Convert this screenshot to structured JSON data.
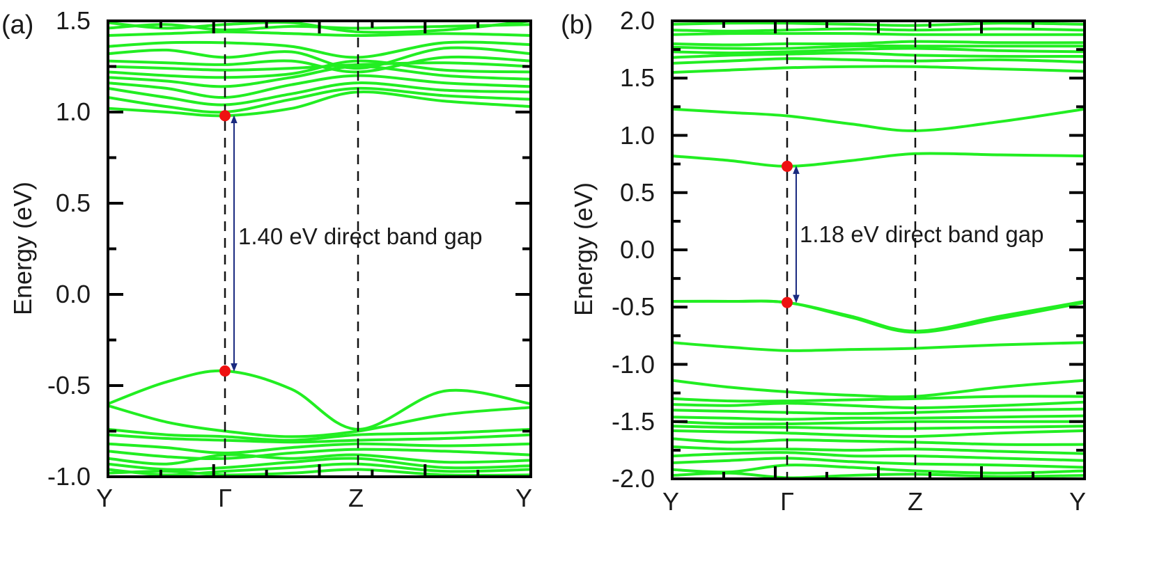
{
  "chart_data": [
    {
      "type": "line",
      "panel_label": "(a)",
      "ylabel": "Energy (eV)",
      "xlabel": "",
      "ylim": [
        -1.0,
        1.5
      ],
      "ytick_labels": [
        "1.5",
        "1.0",
        "0.5",
        "0.0",
        "-0.5",
        "-1.0"
      ],
      "ytick_values": [
        1.5,
        1.0,
        0.5,
        0.0,
        -0.5,
        -1.0
      ],
      "k_labels": [
        "Y",
        "Γ",
        "Z",
        "Y"
      ],
      "k_positions": [
        0,
        1,
        2,
        3.2
      ],
      "gap_annotation": "1.40 eV direct band gap",
      "vbm": {
        "k": 1,
        "energy": -0.42
      },
      "cbm": {
        "k": 1,
        "energy": 0.98
      },
      "line_color": "#22ee22",
      "marker_color": "#ee1111",
      "arrow_color": "#1a2a80",
      "series": [
        {
          "name": "cb1",
          "x": [
            0,
            0.5,
            1,
            1.5,
            2,
            2.6,
            3.2
          ],
          "values": [
            1.02,
            1.0,
            0.98,
            1.02,
            1.11,
            1.06,
            1.03
          ]
        },
        {
          "name": "cb2",
          "x": [
            0,
            0.5,
            1,
            1.5,
            2,
            2.6,
            3.2
          ],
          "values": [
            1.08,
            1.03,
            1.0,
            1.07,
            1.13,
            1.09,
            1.07
          ]
        },
        {
          "name": "cb3",
          "x": [
            0,
            0.5,
            1,
            1.5,
            2,
            2.6,
            3.2
          ],
          "values": [
            1.13,
            1.08,
            1.04,
            1.1,
            1.16,
            1.12,
            1.11
          ]
        },
        {
          "name": "cb4",
          "x": [
            0,
            0.5,
            1,
            1.5,
            2,
            2.6,
            3.2
          ],
          "values": [
            1.16,
            1.13,
            1.08,
            1.15,
            1.2,
            1.16,
            1.14
          ]
        },
        {
          "name": "cb5",
          "x": [
            0,
            0.5,
            1,
            1.5,
            2,
            2.6,
            3.2
          ],
          "values": [
            1.19,
            1.17,
            1.14,
            1.19,
            1.25,
            1.2,
            1.18
          ]
        },
        {
          "name": "cb6",
          "x": [
            0,
            0.5,
            1,
            1.5,
            2,
            2.6,
            3.2
          ],
          "values": [
            1.22,
            1.2,
            1.19,
            1.21,
            1.28,
            1.23,
            1.22
          ]
        },
        {
          "name": "cb7",
          "x": [
            0,
            0.5,
            1,
            1.5,
            2,
            2.6,
            3.2
          ],
          "values": [
            1.25,
            1.24,
            1.23,
            1.24,
            1.26,
            1.27,
            1.25
          ]
        },
        {
          "name": "cb8",
          "x": [
            0,
            0.5,
            1,
            1.5,
            2,
            2.6,
            3.2
          ],
          "values": [
            1.28,
            1.27,
            1.26,
            1.28,
            1.22,
            1.3,
            1.28
          ]
        },
        {
          "name": "cb9",
          "x": [
            0,
            0.5,
            1,
            1.5,
            2,
            2.6,
            3.2
          ],
          "values": [
            1.32,
            1.34,
            1.3,
            1.33,
            1.24,
            1.35,
            1.32
          ]
        },
        {
          "name": "cb10",
          "x": [
            0,
            0.5,
            1,
            1.5,
            2,
            2.6,
            3.2
          ],
          "values": [
            1.36,
            1.38,
            1.38,
            1.36,
            1.3,
            1.38,
            1.37
          ]
        },
        {
          "name": "cb11",
          "x": [
            0,
            0.5,
            1,
            1.5,
            2,
            2.6,
            3.2
          ],
          "values": [
            1.42,
            1.43,
            1.44,
            1.43,
            1.42,
            1.43,
            1.42
          ]
        },
        {
          "name": "cb12",
          "x": [
            0,
            0.5,
            1,
            1.5,
            2,
            2.6,
            3.2
          ],
          "values": [
            1.46,
            1.48,
            1.45,
            1.47,
            1.46,
            1.47,
            1.48
          ]
        },
        {
          "name": "cb13",
          "x": [
            0,
            0.5,
            1,
            1.5,
            2,
            2.6,
            3.2
          ],
          "values": [
            1.49,
            1.46,
            1.48,
            1.49,
            1.44,
            1.45,
            1.5
          ]
        },
        {
          "name": "vb1",
          "x": [
            0,
            0.5,
            1,
            1.5,
            2,
            2.6,
            3.2
          ],
          "values": [
            -0.6,
            -0.48,
            -0.42,
            -0.52,
            -0.74,
            -0.53,
            -0.6
          ]
        },
        {
          "name": "vb2",
          "x": [
            0,
            0.5,
            1,
            1.5,
            2,
            2.6,
            3.2
          ],
          "values": [
            -0.61,
            -0.7,
            -0.75,
            -0.78,
            -0.75,
            -0.66,
            -0.62
          ]
        },
        {
          "name": "vb3",
          "x": [
            0,
            0.5,
            1,
            1.5,
            2,
            2.6,
            3.2
          ],
          "values": [
            -0.74,
            -0.77,
            -0.78,
            -0.8,
            -0.77,
            -0.76,
            -0.74
          ]
        },
        {
          "name": "vb4",
          "x": [
            0,
            0.5,
            1,
            1.5,
            2,
            2.6,
            3.2
          ],
          "values": [
            -0.77,
            -0.79,
            -0.8,
            -0.81,
            -0.8,
            -0.79,
            -0.77
          ]
        },
        {
          "name": "vb5",
          "x": [
            0,
            0.5,
            1,
            1.5,
            2,
            2.6,
            3.2
          ],
          "values": [
            -0.82,
            -0.84,
            -0.87,
            -0.84,
            -0.82,
            -0.83,
            -0.82
          ]
        },
        {
          "name": "vb6",
          "x": [
            0,
            0.5,
            1,
            1.5,
            2,
            2.6,
            3.2
          ],
          "values": [
            -0.86,
            -0.89,
            -0.9,
            -0.87,
            -0.85,
            -0.86,
            -0.88
          ]
        },
        {
          "name": "vb7",
          "x": [
            0,
            0.5,
            1,
            1.5,
            2,
            2.6,
            3.2
          ],
          "values": [
            -0.9,
            -0.93,
            -0.88,
            -0.9,
            -0.88,
            -0.92,
            -0.91
          ]
        },
        {
          "name": "vb8",
          "x": [
            0,
            0.5,
            1,
            1.5,
            2,
            2.6,
            3.2
          ],
          "values": [
            -0.93,
            -0.96,
            -0.95,
            -0.92,
            -0.9,
            -0.95,
            -0.94
          ]
        },
        {
          "name": "vb9",
          "x": [
            0,
            0.5,
            1,
            1.5,
            2,
            2.6,
            3.2
          ],
          "values": [
            -0.96,
            -0.99,
            -0.97,
            -0.95,
            -0.93,
            -0.97,
            -0.96
          ]
        },
        {
          "name": "vb10",
          "x": [
            0,
            0.5,
            1,
            1.5,
            2,
            2.6,
            3.2
          ],
          "values": [
            -0.98,
            -0.97,
            -0.99,
            -0.98,
            -0.96,
            -0.99,
            -0.99
          ]
        }
      ]
    },
    {
      "type": "line",
      "panel_label": "(b)",
      "ylabel": "Energy (eV)",
      "xlabel": "",
      "ylim": [
        -2.0,
        2.0
      ],
      "ytick_labels": [
        "2.0",
        "1.5",
        "1.0",
        "0.5",
        "0.0",
        "-0.5",
        "-1.0",
        "-1.5",
        "-2.0"
      ],
      "ytick_values": [
        2.0,
        1.5,
        1.0,
        0.5,
        0.0,
        -0.5,
        -1.0,
        -1.5,
        -2.0
      ],
      "k_labels": [
        "Y",
        "Γ",
        "Z",
        "Y"
      ],
      "k_positions": [
        0,
        1,
        2,
        3.2
      ],
      "gap_annotation": "1.18 eV direct band gap",
      "vbm": {
        "k": 1,
        "energy": -0.46
      },
      "cbm": {
        "k": 1,
        "energy": 0.73
      },
      "line_color": "#22ee22",
      "marker_color": "#ee1111",
      "arrow_color": "#1a2a80",
      "series": [
        {
          "name": "cb1",
          "x": [
            0,
            0.5,
            1,
            1.5,
            2,
            2.6,
            3.2
          ],
          "values": [
            0.82,
            0.78,
            0.73,
            0.78,
            0.84,
            0.83,
            0.82
          ]
        },
        {
          "name": "cb2",
          "x": [
            0,
            0.5,
            1,
            1.5,
            2,
            2.6,
            3.2
          ],
          "values": [
            1.23,
            1.2,
            1.17,
            1.1,
            1.04,
            1.12,
            1.23
          ]
        },
        {
          "name": "cb3",
          "x": [
            0,
            0.5,
            1,
            1.5,
            2,
            2.6,
            3.2
          ],
          "values": [
            1.55,
            1.57,
            1.59,
            1.6,
            1.6,
            1.58,
            1.56
          ]
        },
        {
          "name": "cb4",
          "x": [
            0,
            0.5,
            1,
            1.5,
            2,
            2.6,
            3.2
          ],
          "values": [
            1.63,
            1.65,
            1.67,
            1.66,
            1.65,
            1.66,
            1.64
          ]
        },
        {
          "name": "cb5",
          "x": [
            0,
            0.5,
            1,
            1.5,
            2,
            2.6,
            3.2
          ],
          "values": [
            1.68,
            1.7,
            1.71,
            1.72,
            1.7,
            1.69,
            1.69
          ]
        },
        {
          "name": "cb6",
          "x": [
            0,
            0.5,
            1,
            1.5,
            2,
            2.6,
            3.2
          ],
          "values": [
            1.73,
            1.72,
            1.73,
            1.75,
            1.76,
            1.74,
            1.73
          ]
        },
        {
          "name": "cb7",
          "x": [
            0,
            0.5,
            1,
            1.5,
            2,
            2.6,
            3.2
          ],
          "values": [
            1.77,
            1.76,
            1.76,
            1.78,
            1.78,
            1.78,
            1.78
          ]
        },
        {
          "name": "cb8",
          "x": [
            0,
            0.5,
            1,
            1.5,
            2,
            2.6,
            3.2
          ],
          "values": [
            1.8,
            1.79,
            1.8,
            1.8,
            1.82,
            1.81,
            1.81
          ]
        },
        {
          "name": "cb9",
          "x": [
            0,
            0.5,
            1,
            1.5,
            2,
            2.6,
            3.2
          ],
          "values": [
            1.88,
            1.89,
            1.89,
            1.89,
            1.88,
            1.88,
            1.88
          ]
        },
        {
          "name": "cb10",
          "x": [
            0,
            0.5,
            1,
            1.5,
            2,
            2.6,
            3.2
          ],
          "values": [
            1.92,
            1.91,
            1.92,
            1.93,
            1.92,
            1.93,
            1.92
          ]
        },
        {
          "name": "cb11",
          "x": [
            0,
            0.5,
            1,
            1.5,
            2,
            2.6,
            3.2
          ],
          "values": [
            1.97,
            1.98,
            1.98,
            1.97,
            1.96,
            1.98,
            1.97
          ]
        },
        {
          "name": "vb1",
          "x": [
            0,
            0.5,
            1,
            1.5,
            2,
            2.6,
            3.2
          ],
          "values": [
            -0.45,
            -0.45,
            -0.46,
            -0.58,
            -0.71,
            -0.58,
            -0.45
          ]
        },
        {
          "name": "vb2",
          "x": [
            0,
            0.5,
            1,
            1.5,
            2,
            2.6,
            3.2
          ],
          "values": [
            -0.45,
            -0.45,
            -0.46,
            -0.59,
            -0.72,
            -0.6,
            -0.46
          ]
        },
        {
          "name": "vb3",
          "x": [
            0,
            0.5,
            1,
            1.5,
            2,
            2.6,
            3.2
          ],
          "values": [
            -0.81,
            -0.85,
            -0.88,
            -0.87,
            -0.86,
            -0.83,
            -0.81
          ]
        },
        {
          "name": "vb4",
          "x": [
            0,
            0.5,
            1,
            1.5,
            2,
            2.6,
            3.2
          ],
          "values": [
            -1.14,
            -1.2,
            -1.24,
            -1.27,
            -1.28,
            -1.2,
            -1.14
          ]
        },
        {
          "name": "vb5",
          "x": [
            0,
            0.5,
            1,
            1.5,
            2,
            2.6,
            3.2
          ],
          "values": [
            -1.3,
            -1.32,
            -1.32,
            -1.31,
            -1.3,
            -1.28,
            -1.28
          ]
        },
        {
          "name": "vb6",
          "x": [
            0,
            0.5,
            1,
            1.5,
            2,
            2.6,
            3.2
          ],
          "values": [
            -1.35,
            -1.36,
            -1.34,
            -1.36,
            -1.38,
            -1.36,
            -1.33
          ]
        },
        {
          "name": "vb7",
          "x": [
            0,
            0.5,
            1,
            1.5,
            2,
            2.6,
            3.2
          ],
          "values": [
            -1.4,
            -1.41,
            -1.42,
            -1.43,
            -1.42,
            -1.4,
            -1.39
          ]
        },
        {
          "name": "vb8",
          "x": [
            0,
            0.5,
            1,
            1.5,
            2,
            2.6,
            3.2
          ],
          "values": [
            -1.46,
            -1.47,
            -1.48,
            -1.47,
            -1.47,
            -1.46,
            -1.45
          ]
        },
        {
          "name": "vb9",
          "x": [
            0,
            0.5,
            1,
            1.5,
            2,
            2.6,
            3.2
          ],
          "values": [
            -1.5,
            -1.52,
            -1.52,
            -1.51,
            -1.5,
            -1.5,
            -1.5
          ]
        },
        {
          "name": "vb10",
          "x": [
            0,
            0.5,
            1,
            1.5,
            2,
            2.6,
            3.2
          ],
          "values": [
            -1.54,
            -1.55,
            -1.55,
            -1.56,
            -1.56,
            -1.55,
            -1.54
          ]
        },
        {
          "name": "vb11",
          "x": [
            0,
            0.5,
            1,
            1.5,
            2,
            2.6,
            3.2
          ],
          "values": [
            -1.58,
            -1.59,
            -1.6,
            -1.62,
            -1.63,
            -1.6,
            -1.58
          ]
        },
        {
          "name": "vb12",
          "x": [
            0,
            0.5,
            1,
            1.5,
            2,
            2.6,
            3.2
          ],
          "values": [
            -1.65,
            -1.68,
            -1.66,
            -1.67,
            -1.68,
            -1.7,
            -1.7
          ]
        },
        {
          "name": "vb13",
          "x": [
            0,
            0.5,
            1,
            1.5,
            2,
            2.6,
            3.2
          ],
          "values": [
            -1.72,
            -1.74,
            -1.74,
            -1.75,
            -1.74,
            -1.76,
            -1.78
          ]
        },
        {
          "name": "vb14",
          "x": [
            0,
            0.5,
            1,
            1.5,
            2,
            2.6,
            3.2
          ],
          "values": [
            -1.8,
            -1.78,
            -1.77,
            -1.8,
            -1.8,
            -1.82,
            -1.84
          ]
        },
        {
          "name": "vb15",
          "x": [
            0,
            0.5,
            1,
            1.5,
            2,
            2.6,
            3.2
          ],
          "values": [
            -1.86,
            -1.84,
            -1.82,
            -1.85,
            -1.87,
            -1.88,
            -1.9
          ]
        },
        {
          "name": "vb16",
          "x": [
            0,
            0.5,
            1,
            1.5,
            2,
            2.6,
            3.2
          ],
          "values": [
            -1.92,
            -1.94,
            -1.88,
            -1.9,
            -1.93,
            -1.95,
            -1.93
          ]
        },
        {
          "name": "vb17",
          "x": [
            0,
            0.5,
            1,
            1.5,
            2,
            2.6,
            3.2
          ],
          "values": [
            -1.97,
            -1.95,
            -1.99,
            -1.97,
            -1.96,
            -1.98,
            -1.97
          ]
        }
      ]
    }
  ]
}
